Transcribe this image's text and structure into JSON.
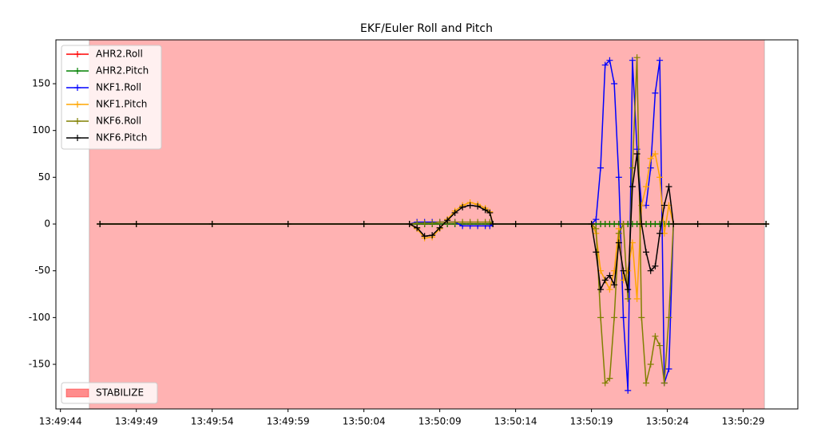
{
  "chart_data": {
    "type": "line",
    "title": "EKF/Euler Roll and Pitch",
    "x": [
      "13:49:46.6",
      "13:49:49.0",
      "13:49:54.0",
      "13:49:59.0",
      "13:50:04.0",
      "13:50:07.0",
      "13:50:07.5",
      "13:50:08.0",
      "13:50:08.5",
      "13:50:09.0",
      "13:50:09.5",
      "13:50:10.0",
      "13:50:10.5",
      "13:50:11.0",
      "13:50:11.5",
      "13:50:12.0",
      "13:50:12.3",
      "13:50:12.5",
      "13:50:14.0",
      "13:50:17.0",
      "13:50:19.0",
      "13:50:19.3",
      "13:50:19.6",
      "13:50:19.9",
      "13:50:20.2",
      "13:50:20.5",
      "13:50:20.8",
      "13:50:21.1",
      "13:50:21.4",
      "13:50:21.7",
      "13:50:22.0",
      "13:50:22.3",
      "13:50:22.6",
      "13:50:22.9",
      "13:50:23.2",
      "13:50:23.5",
      "13:50:23.8",
      "13:50:24.1",
      "13:50:24.4",
      "13:50:26.0",
      "13:50:28.0",
      "13:50:30.5"
    ],
    "series": [
      {
        "name": "AHR2.Roll",
        "color": "#ff0000",
        "values": [
          0,
          0,
          0,
          0,
          0,
          0,
          0,
          0,
          0,
          0,
          0,
          0,
          0,
          0,
          0,
          0,
          0,
          0,
          0,
          0,
          0,
          0,
          0,
          0,
          0,
          0,
          0,
          0,
          0,
          0,
          0,
          0,
          0,
          0,
          0,
          0,
          0,
          0,
          0,
          0,
          0,
          0
        ]
      },
      {
        "name": "AHR2.Pitch",
        "color": "#008000",
        "values": [
          0,
          0,
          0,
          0,
          0,
          0,
          0,
          0,
          0,
          0,
          0,
          0,
          0,
          0,
          0,
          0,
          0,
          0,
          0,
          0,
          0,
          0,
          0,
          0,
          0,
          0,
          0,
          0,
          0,
          0,
          0,
          0,
          0,
          0,
          0,
          0,
          0,
          0,
          0,
          0,
          0,
          0
        ]
      },
      {
        "name": "NKF1.Roll",
        "color": "#0000ff",
        "values": [
          0,
          0,
          0,
          0,
          0,
          0,
          2,
          2,
          2,
          2,
          2,
          2,
          -2,
          -2,
          -2,
          -2,
          -2,
          0,
          0,
          0,
          0,
          5,
          60,
          170,
          175,
          150,
          50,
          -100,
          -178,
          175,
          80,
          20,
          20,
          60,
          140,
          175,
          -170,
          -155,
          0,
          0,
          0,
          0
        ]
      },
      {
        "name": "NKF1.Pitch",
        "color": "#ffa500",
        "values": [
          0,
          0,
          0,
          0,
          0,
          0,
          -5,
          -15,
          -14,
          -5,
          5,
          14,
          20,
          23,
          21,
          17,
          13,
          0,
          0,
          0,
          0,
          -10,
          -50,
          -60,
          -70,
          -50,
          -5,
          -60,
          -50,
          -20,
          -80,
          20,
          40,
          70,
          75,
          50,
          -10,
          20,
          0,
          0,
          0,
          0
        ]
      },
      {
        "name": "NKF6.Roll",
        "color": "#808000",
        "values": [
          0,
          0,
          0,
          0,
          0,
          0,
          1,
          1,
          1,
          2,
          2,
          2,
          2,
          2,
          2,
          2,
          2,
          0,
          0,
          0,
          0,
          -5,
          -100,
          -170,
          -165,
          -100,
          -10,
          0,
          -80,
          60,
          178,
          -100,
          -170,
          -150,
          -120,
          -130,
          -170,
          -100,
          0,
          0,
          0,
          0
        ]
      },
      {
        "name": "NKF6.Pitch",
        "color": "#000000",
        "values": [
          0,
          0,
          0,
          0,
          0,
          0,
          -4,
          -13,
          -12,
          -4,
          4,
          12,
          18,
          20,
          19,
          15,
          12,
          0,
          0,
          0,
          0,
          -30,
          -70,
          -60,
          -55,
          -65,
          -20,
          -50,
          -70,
          40,
          75,
          0,
          -30,
          -50,
          -45,
          -10,
          20,
          40,
          0,
          0,
          0,
          0
        ]
      }
    ],
    "shaded_regions": [
      {
        "name": "STABILIZE",
        "color": "#ff0000",
        "alpha": 0.3,
        "start": "13:49:45.9",
        "end": "13:50:30.4"
      }
    ],
    "xlim": [
      "13:49:43.7",
      "13:50:32.6"
    ],
    "xticks": [
      "13:49:44",
      "13:49:49",
      "13:49:54",
      "13:49:59",
      "13:50:04",
      "13:50:09",
      "13:50:14",
      "13:50:19",
      "13:50:24",
      "13:50:29"
    ],
    "ylim": [
      -197.7,
      196.9
    ],
    "yticks": [
      -150,
      -100,
      -50,
      0,
      50,
      100,
      150
    ],
    "grid": false,
    "legend": "upper left",
    "region_legend": "lower left"
  }
}
